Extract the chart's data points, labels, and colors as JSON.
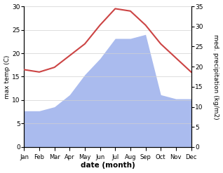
{
  "months": [
    "Jan",
    "Feb",
    "Mar",
    "Apr",
    "May",
    "Jun",
    "Jul",
    "Aug",
    "Sep",
    "Oct",
    "Nov",
    "Dec"
  ],
  "temperature": [
    16.5,
    16.0,
    17.0,
    19.5,
    22.0,
    26.0,
    29.5,
    29.0,
    26.0,
    22.0,
    19.0,
    16.0
  ],
  "precipitation": [
    9.0,
    9.0,
    10.0,
    13.0,
    18.0,
    22.0,
    27.0,
    27.0,
    28.0,
    13.0,
    12.0,
    12.0
  ],
  "temp_color": "#cc4444",
  "precip_color": "#aabbee",
  "ylim_temp": [
    0,
    30
  ],
  "ylim_precip": [
    0,
    35
  ],
  "yticks_temp": [
    0,
    5,
    10,
    15,
    20,
    25,
    30
  ],
  "yticks_precip": [
    0,
    5,
    10,
    15,
    20,
    25,
    30,
    35
  ],
  "ylabel_left": "max temp (C)",
  "ylabel_right": "med. precipitation (kg/m2)",
  "xlabel": "date (month)",
  "bg_color": "#ffffff",
  "grid_color": "#d0d0d0"
}
